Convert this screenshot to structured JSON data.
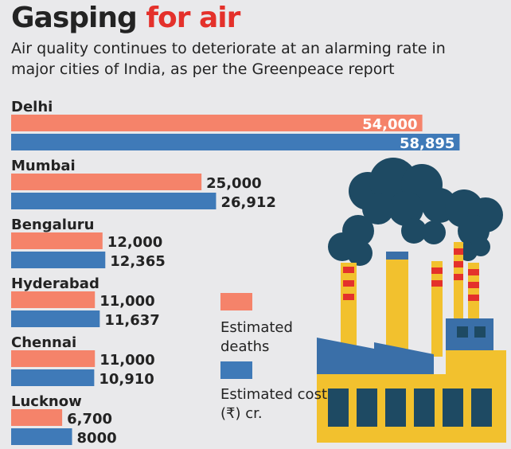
{
  "title": {
    "main": "Gasping ",
    "accent": "for air"
  },
  "subtitle": {
    "line1": "Air quality continues to deteriorate at an alarming rate in",
    "line2": "major cities of India, as per the Greenpeace report"
  },
  "legend": {
    "deaths_label_line1": "Estimated",
    "deaths_label_line2": "deaths",
    "cost_label_line1": "Estimated cost",
    "cost_label_line2": "(₹) cr."
  },
  "colors": {
    "deaths": "#f5836a",
    "cost": "#3f7ab8",
    "accent": "#e4312b",
    "smoke": "#1e4a63",
    "factory_yellow": "#f2c12e",
    "factory_blue": "#3a6fa8",
    "stack_red": "#e4312b"
  },
  "chart_data": {
    "type": "bar",
    "orientation": "horizontal",
    "categories": [
      "Delhi",
      "Mumbai",
      "Bengaluru",
      "Hyderabad",
      "Chennai",
      "Lucknow"
    ],
    "series": [
      {
        "name": "Estimated deaths",
        "values": [
          54000,
          25000,
          12000,
          11000,
          11000,
          6700
        ],
        "labels": [
          "54,000",
          "25,000",
          "12,000",
          "11,000",
          "11,000",
          "6,700"
        ]
      },
      {
        "name": "Estimated cost (₹) cr.",
        "values": [
          58895,
          26912,
          12365,
          11637,
          10910,
          8000
        ],
        "labels": [
          "58,895",
          "26,912",
          "12,365",
          "11,637",
          "10,910",
          "8000"
        ]
      }
    ],
    "xlim": [
      0,
      60000
    ]
  }
}
